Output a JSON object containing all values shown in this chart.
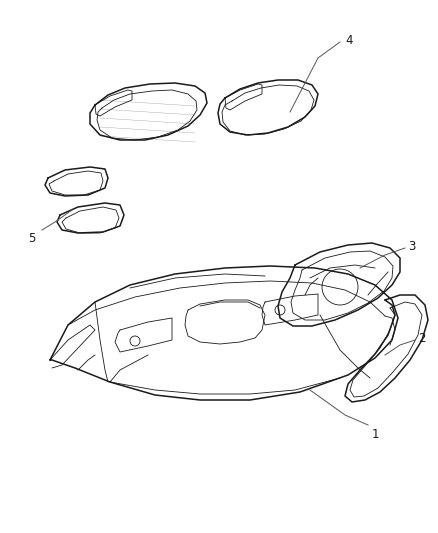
{
  "bg_color": "#ffffff",
  "line_color": "#1a1a1a",
  "label_color": "#1a1a1a",
  "leader_color": "#555555",
  "lw_main": 1.1,
  "lw_thin": 0.6,
  "lw_leader": 0.7,
  "label_fontsize": 8.5,
  "figsize": [
    4.39,
    5.33
  ],
  "dpi": 100
}
